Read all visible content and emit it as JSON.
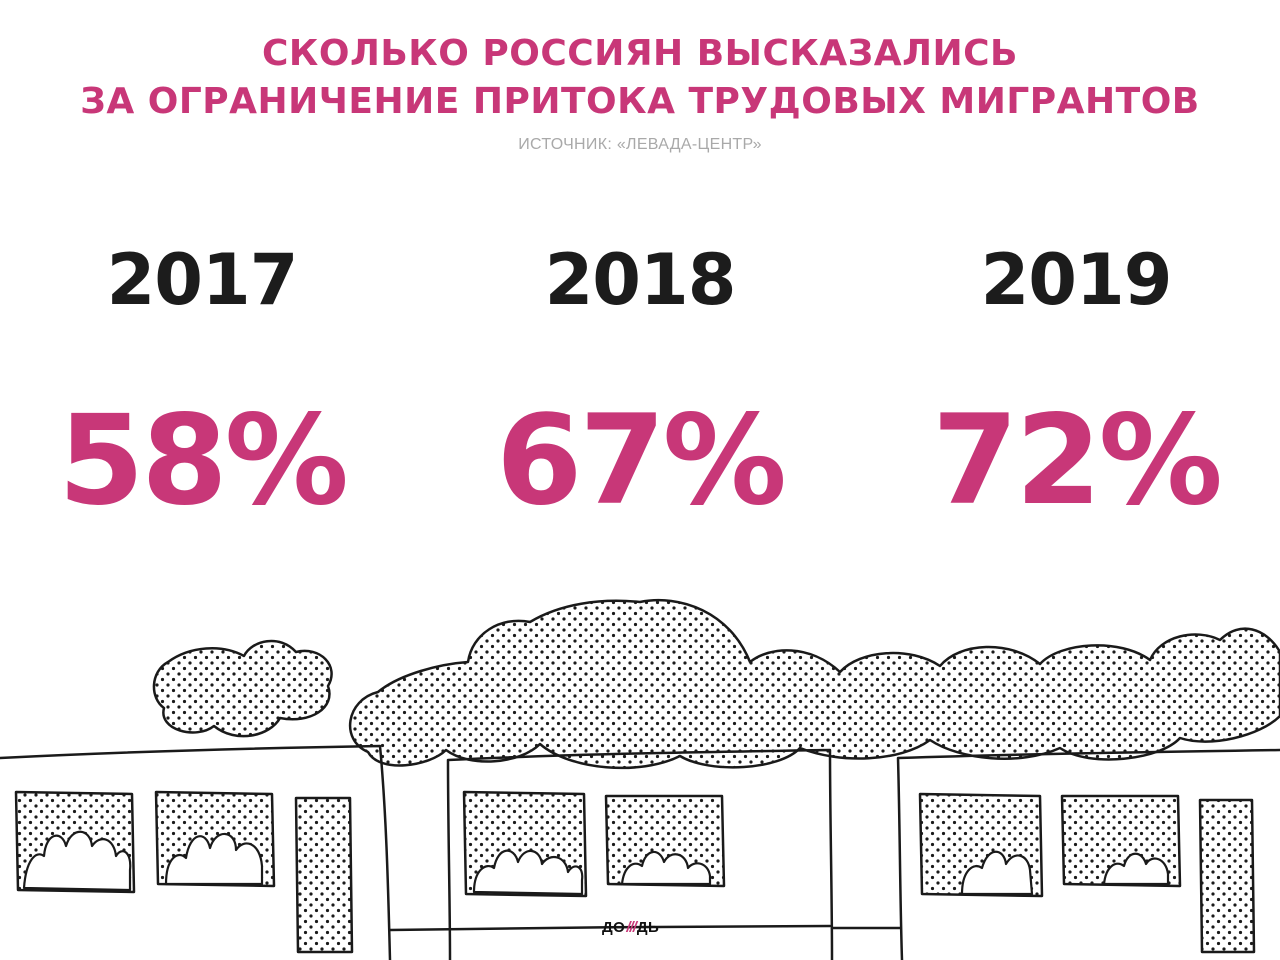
{
  "title": {
    "line1": "СКОЛЬКО РОССИЯН ВЫСКАЗАЛИСЬ",
    "line2": "ЗА ОГРАНИЧЕНИЕ ПРИТОКА ТРУДОВЫХ МИГРАНТОВ"
  },
  "source": "ИСТОЧНИК: «ЛЕВАДА-ЦЕНТР»",
  "logo": {
    "left": "ДО",
    "right": "ДЬ",
    "slashes": "///"
  },
  "colors": {
    "accent": "#c83778",
    "year": "#1c1c1c",
    "source": "#a9a9a9"
  },
  "chart_data": {
    "type": "table",
    "title": "СКОЛЬКО РОССИЯН ВЫСКАЗАЛИСЬ ЗА ОГРАНИЧЕНИЕ ПРИТОКА ТРУДОВЫХ МИГРАНТОВ",
    "subtitle": "ИСТОЧНИК: «ЛЕВАДА-ЦЕНТР»",
    "categories": [
      "2017",
      "2018",
      "2019"
    ],
    "values": [
      58,
      67,
      72
    ],
    "labels": [
      "58%",
      "67%",
      "72%"
    ],
    "unit": "%"
  }
}
